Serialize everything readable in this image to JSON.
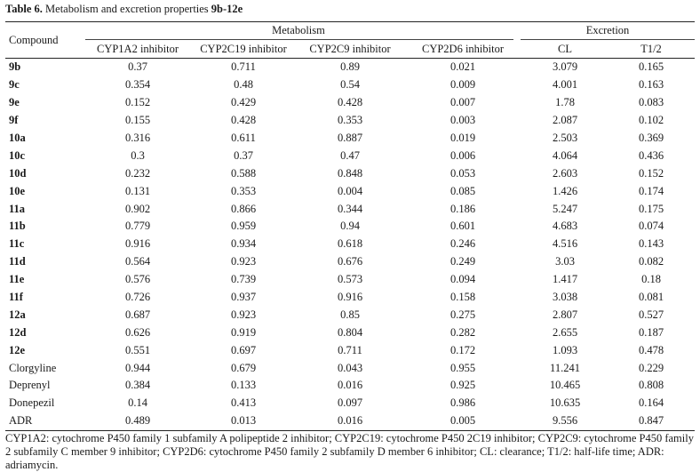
{
  "caption": {
    "label": "Table 6.",
    "text": " Metabolism and excretion properties ",
    "ids": "9b-12e"
  },
  "header": {
    "compound": "Compound",
    "metabolism": "Metabolism",
    "excretion": "Excretion",
    "columns": [
      "CYP1A2 inhibitor",
      "CYP2C19 inhibitor",
      "CYP2C9 inhibitor",
      "CYP2D6 inhibitor",
      "CL",
      "T1/2"
    ]
  },
  "rows": [
    {
      "compound": "9b",
      "values": [
        "0.37",
        "0.711",
        "0.89",
        "0.021",
        "3.079",
        "0.165"
      ]
    },
    {
      "compound": "9c",
      "values": [
        "0.354",
        "0.48",
        "0.54",
        "0.009",
        "4.001",
        "0.163"
      ]
    },
    {
      "compound": "9e",
      "values": [
        "0.152",
        "0.429",
        "0.428",
        "0.007",
        "1.78",
        "0.083"
      ]
    },
    {
      "compound": "9f",
      "values": [
        "0.155",
        "0.428",
        "0.353",
        "0.003",
        "2.087",
        "0.102"
      ]
    },
    {
      "compound": "10a",
      "values": [
        "0.316",
        "0.611",
        "0.887",
        "0.019",
        "2.503",
        "0.369"
      ]
    },
    {
      "compound": "10c",
      "values": [
        "0.3",
        "0.37",
        "0.47",
        "0.006",
        "4.064",
        "0.436"
      ]
    },
    {
      "compound": "10d",
      "values": [
        "0.232",
        "0.588",
        "0.848",
        "0.053",
        "2.603",
        "0.152"
      ]
    },
    {
      "compound": "10e",
      "values": [
        "0.131",
        "0.353",
        "0.004",
        "0.085",
        "1.426",
        "0.174"
      ]
    },
    {
      "compound": "11a",
      "values": [
        "0.902",
        "0.866",
        "0.344",
        "0.186",
        "5.247",
        "0.175"
      ]
    },
    {
      "compound": "11b",
      "values": [
        "0.779",
        "0.959",
        "0.94",
        "0.601",
        "4.683",
        "0.074"
      ]
    },
    {
      "compound": "11c",
      "values": [
        "0.916",
        "0.934",
        "0.618",
        "0.246",
        "4.516",
        "0.143"
      ]
    },
    {
      "compound": "11d",
      "values": [
        "0.564",
        "0.923",
        "0.676",
        "0.249",
        "3.03",
        "0.082"
      ]
    },
    {
      "compound": "11e",
      "values": [
        "0.576",
        "0.739",
        "0.573",
        "0.094",
        "1.417",
        "0.18"
      ]
    },
    {
      "compound": "11f",
      "values": [
        "0.726",
        "0.937",
        "0.916",
        "0.158",
        "3.038",
        "0.081"
      ]
    },
    {
      "compound": "12a",
      "values": [
        "0.687",
        "0.923",
        "0.85",
        "0.275",
        "2.807",
        "0.527"
      ]
    },
    {
      "compound": "12d",
      "values": [
        "0.626",
        "0.919",
        "0.804",
        "0.282",
        "2.655",
        "0.187"
      ]
    },
    {
      "compound": "12e",
      "values": [
        "0.551",
        "0.697",
        "0.711",
        "0.172",
        "1.093",
        "0.478"
      ]
    },
    {
      "compound": "Clorgyline",
      "values": [
        "0.944",
        "0.679",
        "0.043",
        "0.955",
        "11.241",
        "0.229"
      ]
    },
    {
      "compound": "Deprenyl",
      "values": [
        "0.384",
        "0.133",
        "0.016",
        "0.925",
        "10.465",
        "0.808"
      ]
    },
    {
      "compound": "Donepezil",
      "values": [
        "0.14",
        "0.413",
        "0.097",
        "0.986",
        "10.635",
        "0.164"
      ]
    },
    {
      "compound": "ADR",
      "values": [
        "0.489",
        "0.013",
        "0.016",
        "0.005",
        "9.556",
        "0.847"
      ]
    }
  ],
  "footnote": "CYP1A2: cytochrome P450 family 1 subfamily A polipeptide 2 inhibitor; CYP2C19: cytochrome P450 2C19 inhibitor; CYP2C9: cytochrome P450 family 2 subfamily C member 9 inhibitor; CYP2D6: cytochrome P450 family 2 subfamily D member 6 inhibitor; CL: clearance; T1/2: half-life time; ADR: adriamycin."
}
